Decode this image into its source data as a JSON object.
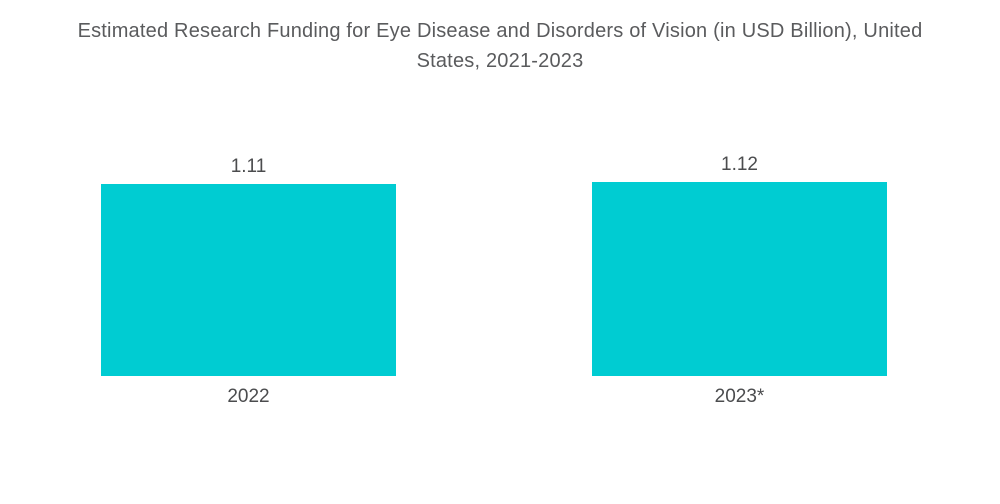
{
  "title": "Estimated Research Funding for Eye Disease and Disorders of Vision (in USD Billion), United States, 2021-2023",
  "chart_data": {
    "type": "bar",
    "title": "Estimated Research Funding for Eye Disease and Disorders of Vision (in USD Billion), United States, 2021-2023",
    "categories": [
      "2022",
      "2023*"
    ],
    "values": [
      1.11,
      1.12
    ],
    "value_labels": [
      "1.11",
      "1.12"
    ],
    "xlabel": "",
    "ylabel": "",
    "ylim": [
      0,
      1.25
    ],
    "grid": false,
    "legend": false,
    "bar_color": "#00CCD2"
  },
  "colors": {
    "background": "#FFFFFF",
    "bar": "#00CCD2",
    "title_text": "#5A5B5D",
    "label_text": "#4B4C4E"
  }
}
